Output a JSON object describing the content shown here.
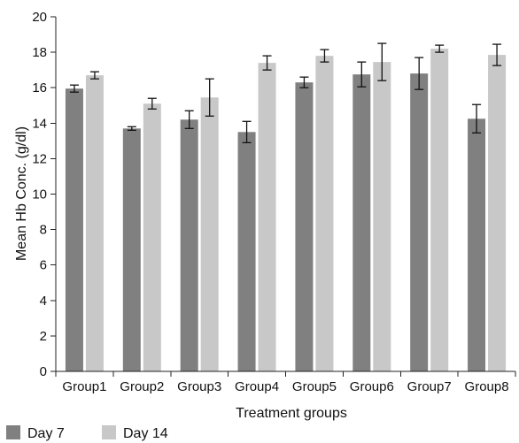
{
  "chart_data": {
    "type": "bar",
    "categories": [
      "Group1",
      "Group2",
      "Group3",
      "Group4",
      "Group5",
      "Group6",
      "Group7",
      "Group8"
    ],
    "series": [
      {
        "name": "Day 7",
        "color": "#808080",
        "values": [
          15.95,
          13.7,
          14.2,
          13.5,
          16.3,
          16.75,
          16.8,
          14.25
        ],
        "errors": [
          0.2,
          0.1,
          0.5,
          0.6,
          0.3,
          0.7,
          0.9,
          0.8
        ]
      },
      {
        "name": "Day 14",
        "color": "#c8c8c8",
        "values": [
          16.7,
          15.1,
          15.45,
          17.4,
          17.8,
          17.45,
          18.2,
          17.85
        ],
        "errors": [
          0.2,
          0.3,
          1.05,
          0.4,
          0.35,
          1.05,
          0.2,
          0.6
        ]
      }
    ],
    "title": "",
    "xlabel": "Treatment groups",
    "ylabel": "Mean Hb Conc. (g/dl)",
    "ylim": [
      0,
      20
    ],
    "yticks": [
      0,
      2,
      4,
      6,
      8,
      10,
      12,
      14,
      16,
      18,
      20
    ],
    "grid": false,
    "legend_position": "bottom-left"
  }
}
